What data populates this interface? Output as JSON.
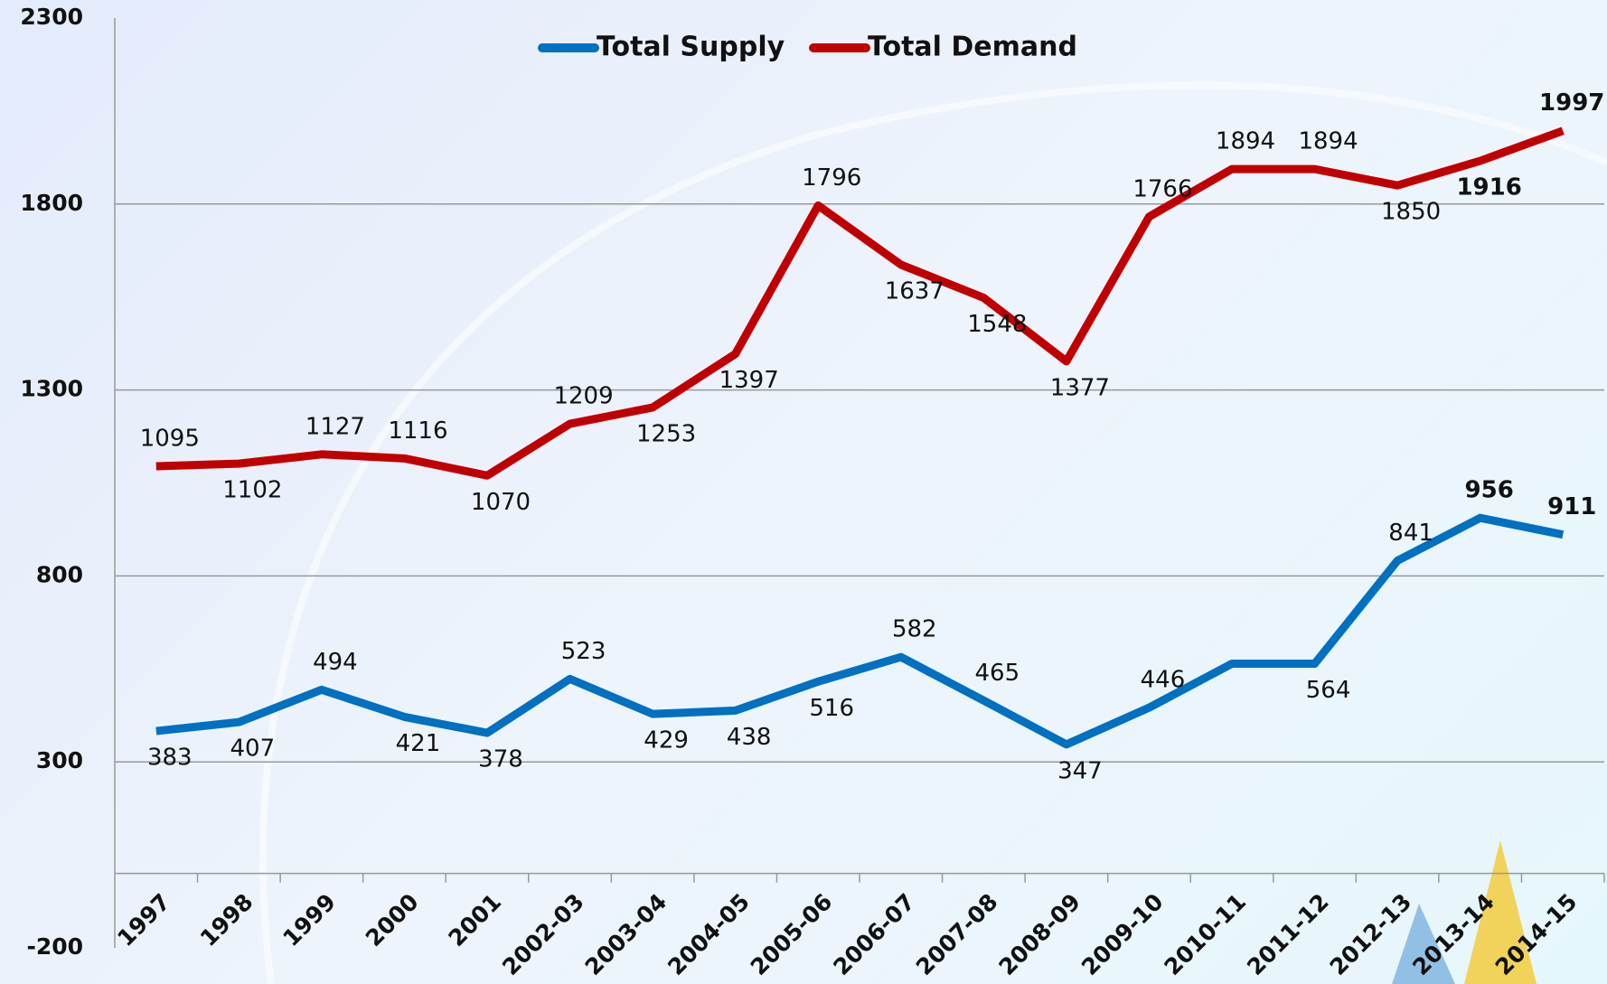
{
  "chart_data": {
    "type": "line",
    "categories": [
      "1997",
      "1998",
      "1999",
      "2000",
      "2001",
      "2002-03",
      "2003-04",
      "2004-05",
      "2005-06",
      "2006-07",
      "2007-08",
      "2008-09",
      "2009-10",
      "2010-11",
      "2011-12",
      "2012-13",
      "2013-14",
      "2014-15"
    ],
    "series": [
      {
        "name": "Total Supply",
        "color": "#0070c0",
        "values": [
          383,
          407,
          494,
          421,
          378,
          523,
          429,
          438,
          516,
          582,
          465,
          347,
          446,
          564,
          564,
          841,
          956,
          911
        ],
        "value_labels": [
          "383",
          "407",
          "494",
          "421",
          "378",
          "523",
          "429",
          "438",
          "516",
          "582",
          "465",
          "347",
          "446",
          null,
          "564",
          "841",
          "956",
          "911"
        ]
      },
      {
        "name": "Total Demand",
        "color": "#c00000",
        "values": [
          1095,
          1102,
          1127,
          1116,
          1070,
          1209,
          1253,
          1397,
          1796,
          1637,
          1548,
          1377,
          1766,
          1894,
          1894,
          1850,
          1916,
          1997
        ],
        "value_labels": [
          "1095",
          "1102",
          "1127",
          "1116",
          "1070",
          "1209",
          "1253",
          "1397",
          "1796",
          "1637",
          "1548",
          "1377",
          "1766",
          "1894",
          "1894",
          "1850",
          "1916",
          "1997"
        ]
      }
    ],
    "highlight_color": "#ff0000",
    "ylim": [
      -200,
      2300
    ],
    "yticks": [
      -200,
      300,
      800,
      1300,
      1800,
      2300
    ],
    "grid": true,
    "legend": "top"
  }
}
